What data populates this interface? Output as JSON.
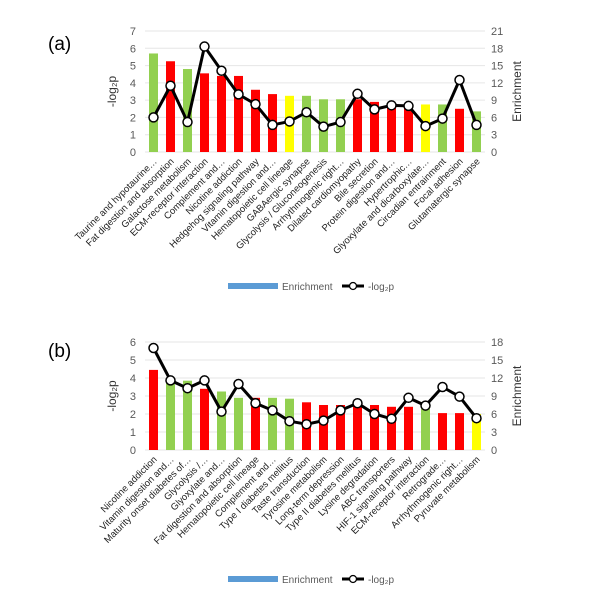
{
  "colors": {
    "red": "#ff0000",
    "green": "#92d050",
    "yellow": "#ffff00",
    "line": "#000000",
    "legend_bar": "#5b9bd5",
    "grid": "#e6e6e6"
  },
  "chart_data": [
    {
      "type": "bar+line",
      "panel_label": "(a)",
      "ylabel": "-log₂p",
      "y2label": "Enrichment",
      "ylim": [
        0,
        7
      ],
      "yticks": [
        "0",
        "1",
        "2",
        "3",
        "4",
        "5",
        "6",
        "7"
      ],
      "y2lim": [
        0,
        21
      ],
      "y2ticks": [
        "0",
        "3",
        "6",
        "9",
        "12",
        "15",
        "18",
        "21"
      ],
      "categories": [
        "Taurine and hypotaurine…",
        "Fat digestion and absorption",
        "Galactose metabolism",
        "ECM-receptor interaction",
        "Complement and…",
        "Nicotine addiction",
        "Hedgehog signaling pathway",
        "Vitamin digestion and…",
        "Hematopoietic cell lineage",
        "GABAergic synapse",
        "Glycolysis / Gluconeogenesis",
        "Arrhythmogenic right…",
        "Dilated cardiomyopathy",
        "Bile secretion",
        "Protein digestion and…",
        "Hypertrophic…",
        "Glyoxylate and dicarboxylate…",
        "Circadian entrainment",
        "Focal adhesion",
        "Glutamatergic synapse"
      ],
      "bar_values": [
        5.7,
        5.25,
        4.8,
        4.55,
        4.4,
        4.4,
        3.6,
        3.35,
        3.25,
        3.25,
        3.05,
        3.05,
        3.05,
        2.9,
        2.65,
        2.65,
        2.75,
        2.75,
        2.5,
        2.35
      ],
      "bar_colors": [
        "green",
        "red",
        "green",
        "red",
        "red",
        "red",
        "red",
        "red",
        "yellow",
        "green",
        "green",
        "green",
        "red",
        "red",
        "red",
        "red",
        "yellow",
        "green",
        "red",
        "green"
      ],
      "line_values": [
        6.0,
        11.5,
        5.2,
        18.3,
        14.1,
        10.0,
        8.3,
        4.7,
        5.3,
        6.9,
        4.4,
        5.2,
        10.1,
        7.4,
        8.1,
        8.0,
        4.5,
        5.8,
        12.5,
        4.7
      ],
      "legend": {
        "bar_label": "Enrichment",
        "line_label": "-log₂p",
        "placement": "bottom"
      }
    },
    {
      "type": "bar+line",
      "panel_label": "(b)",
      "ylabel": "-log₂p",
      "y2label": "Enrichment",
      "ylim": [
        0,
        6
      ],
      "yticks": [
        "0",
        "1",
        "2",
        "3",
        "4",
        "5",
        "6"
      ],
      "y2lim": [
        0,
        18
      ],
      "y2ticks": [
        "0",
        "3",
        "6",
        "9",
        "12",
        "15",
        "18"
      ],
      "categories": [
        "Nicotine addiction",
        "Vitamin digestion and…",
        "Maturity onset diabetes of…",
        "Glycolysis /…",
        "Glyoxylate and…",
        "Fat digestion and absorption",
        "Hematopoietic cell lineage",
        "Complement and…",
        "Type I diabetes mellitus",
        "Taste transduction",
        "Tyrosine metabolism",
        "Long-term depression",
        "Type II diabetes mellitus",
        "Lysine degradation",
        "ABC transporters",
        "HIF-1 signaling pathway",
        "ECM-receptor interaction",
        "Retrograde…",
        "Arrhythmogenic right…",
        "Pyruvate metabolism"
      ],
      "bar_values": [
        4.45,
        3.85,
        3.85,
        3.4,
        3.25,
        2.9,
        2.9,
        2.9,
        2.85,
        2.65,
        2.5,
        2.5,
        2.5,
        2.5,
        2.4,
        2.4,
        2.3,
        2.05,
        2.05,
        2.0
      ],
      "bar_colors": [
        "red",
        "green",
        "green",
        "red",
        "green",
        "green",
        "red",
        "green",
        "green",
        "red",
        "red",
        "red",
        "red",
        "red",
        "red",
        "red",
        "green",
        "red",
        "red",
        "yellow"
      ],
      "line_values": [
        17.0,
        11.6,
        10.3,
        11.6,
        6.4,
        11.0,
        7.8,
        6.6,
        4.8,
        4.3,
        4.9,
        6.6,
        7.8,
        6.0,
        5.2,
        8.7,
        7.4,
        10.5,
        8.9,
        5.3
      ],
      "legend": {
        "bar_label": "Enrichment",
        "line_label": "-log₂p",
        "placement": "bottom"
      }
    }
  ]
}
